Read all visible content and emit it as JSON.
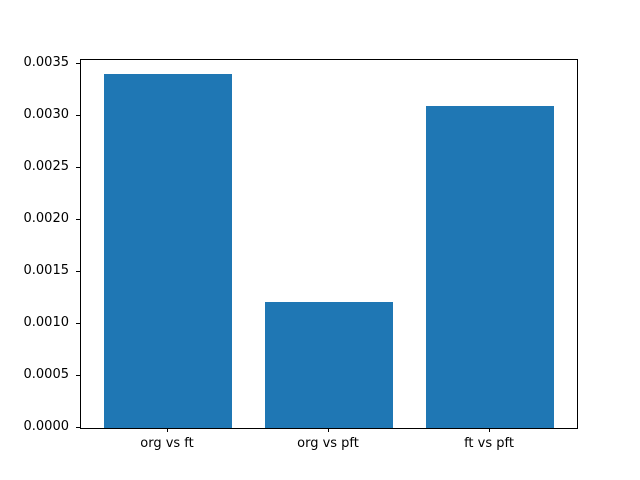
{
  "figure": {
    "background": "#ffffff",
    "title": ""
  },
  "chart_data": {
    "type": "bar",
    "categories": [
      "org vs ft",
      "org vs pft",
      "ft vs pft"
    ],
    "values": [
      0.0034,
      0.00121,
      0.0031
    ],
    "title": "",
    "xlabel": "",
    "ylabel": "",
    "ylim": [
      0,
      0.003538
    ],
    "xlim": [
      -0.54,
      2.54
    ],
    "bar_positions": [
      0,
      1,
      2
    ],
    "bar_width": 0.8,
    "bar_color": "#1f77b4",
    "frame_color": "#000000",
    "text_color": "#000000",
    "yticks": [
      0.0,
      0.0005,
      0.001,
      0.0015,
      0.002,
      0.0025,
      0.003,
      0.0035
    ],
    "ytick_labels": [
      "0.0000",
      "0.0005",
      "0.0010",
      "0.0015",
      "0.0020",
      "0.0025",
      "0.0030",
      "0.0035"
    ],
    "grid": false,
    "legend": null
  }
}
